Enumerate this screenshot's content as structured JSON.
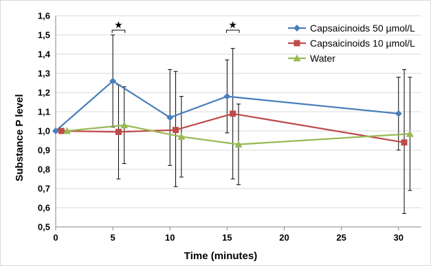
{
  "chart_data": {
    "type": "line",
    "xlabel": "Time (minutes)",
    "ylabel": "Substance P level",
    "xlim": [
      0,
      32
    ],
    "ylim": [
      0.5,
      1.6
    ],
    "x_ticks": [
      "0",
      "5",
      "10",
      "15",
      "20",
      "25",
      "30"
    ],
    "x_tick_values": [
      0,
      5,
      10,
      15,
      20,
      25,
      30
    ],
    "y_ticks": [
      "0,5",
      "0,6",
      "0,7",
      "0,8",
      "0,9",
      "1,0",
      "1,1",
      "1,2",
      "1,3",
      "1,4",
      "1,5",
      "1,6"
    ],
    "y_tick_values": [
      0.5,
      0.6,
      0.7,
      0.8,
      0.9,
      1.0,
      1.1,
      1.2,
      1.3,
      1.4,
      1.5,
      1.6
    ],
    "grid": "horizontal",
    "legend_position": "top-right",
    "series": [
      {
        "name": "Capsaicinoids 50 µmol/L",
        "color": "#4a7ebb",
        "marker": "diamond",
        "x": [
          0,
          5,
          10,
          15,
          30
        ],
        "y": [
          1.0,
          1.26,
          1.07,
          1.18,
          1.09
        ],
        "err_low": [
          1.0,
          1.02,
          0.82,
          0.99,
          0.9
        ],
        "err_high": [
          1.0,
          1.5,
          1.32,
          1.37,
          1.28
        ]
      },
      {
        "name": "Capsaicinoids 10 µmol/L",
        "color": "#be4b48",
        "marker": "square",
        "x": [
          0.5,
          5.5,
          10.5,
          15.5,
          30.5
        ],
        "y": [
          1.0,
          0.995,
          1.005,
          1.09,
          0.94
        ],
        "err_low": [
          1.0,
          0.75,
          0.71,
          0.75,
          0.57
        ],
        "err_high": [
          1.0,
          1.24,
          1.31,
          1.43,
          1.32
        ]
      },
      {
        "name": "Water",
        "color": "#98b954",
        "marker": "triangle",
        "x": [
          1,
          6,
          11,
          16,
          31
        ],
        "y": [
          1.0,
          1.03,
          0.97,
          0.93,
          0.985
        ],
        "err_low": [
          1.0,
          0.83,
          0.76,
          0.72,
          0.69
        ],
        "err_high": [
          1.0,
          1.23,
          1.18,
          1.14,
          1.28
        ]
      }
    ],
    "annotations": [
      {
        "text": "★",
        "x_from": 5,
        "x_to": 6
      },
      {
        "text": "★",
        "x_from": 15,
        "x_to": 16
      }
    ]
  }
}
